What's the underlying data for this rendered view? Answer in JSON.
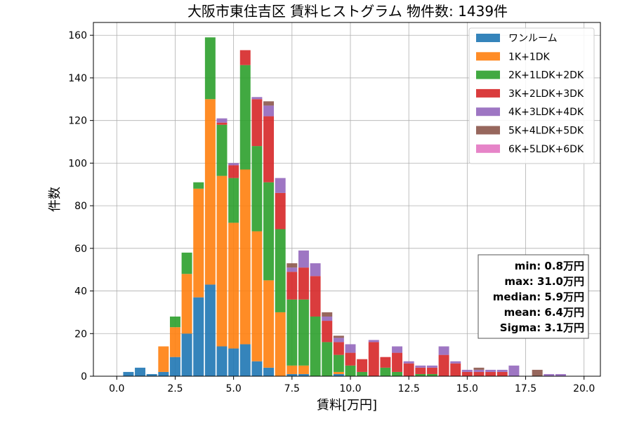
{
  "chart_data": {
    "type": "bar",
    "stacked": true,
    "title": "大阪市東住吉区 賃料ヒストグラム 物件数: 1439件",
    "xlabel": "賃料[万円]",
    "ylabel": "件数",
    "xlim": [
      -1.0,
      20.7
    ],
    "ylim": [
      0,
      166
    ],
    "xticks": [
      0.0,
      2.5,
      5.0,
      7.5,
      10.0,
      12.5,
      15.0,
      17.5,
      20.0
    ],
    "xtick_labels": [
      "0.0",
      "2.5",
      "5.0",
      "7.5",
      "10.0",
      "12.5",
      "15.0",
      "17.5",
      "20.0"
    ],
    "yticks": [
      0,
      20,
      40,
      60,
      80,
      100,
      120,
      140,
      160
    ],
    "ytick_labels": [
      "0",
      "20",
      "40",
      "60",
      "80",
      "100",
      "120",
      "140",
      "160"
    ],
    "grid": true,
    "legend_position": "top-right",
    "bin_width": 0.5,
    "x": [
      0.5,
      1.0,
      1.5,
      2.0,
      2.5,
      3.0,
      3.5,
      4.0,
      4.5,
      5.0,
      5.5,
      6.0,
      6.5,
      7.0,
      7.5,
      8.0,
      8.5,
      9.0,
      9.5,
      10.0,
      10.5,
      11.0,
      11.5,
      12.0,
      12.5,
      13.0,
      13.5,
      14.0,
      14.5,
      15.0,
      15.5,
      16.0,
      16.5,
      17.0,
      17.5,
      18.0,
      18.5,
      19.0,
      19.5
    ],
    "series": [
      {
        "name": "ワンルーム",
        "color": "#1f77b4",
        "values": [
          2,
          4,
          1,
          2,
          9,
          20,
          37,
          43,
          14,
          13,
          15,
          7,
          4,
          0,
          1,
          1,
          0,
          0,
          1,
          0,
          0,
          0,
          0,
          0,
          0,
          0,
          0,
          0,
          0,
          0,
          0,
          0,
          0,
          0,
          0,
          0,
          0,
          0,
          0
        ]
      },
      {
        "name": "1K+1DK",
        "color": "#ff7f0e",
        "values": [
          0,
          0,
          0,
          12,
          14,
          28,
          51,
          87,
          80,
          59,
          82,
          61,
          41,
          30,
          4,
          4,
          0,
          0,
          1,
          0,
          0,
          0,
          0,
          0,
          0,
          0,
          0,
          0,
          0,
          0,
          0,
          0,
          0,
          0,
          0,
          0,
          0,
          0,
          0
        ]
      },
      {
        "name": "2K+1LDK+2DK",
        "color": "#2ca02c",
        "values": [
          0,
          0,
          0,
          0,
          5,
          10,
          3,
          29,
          24,
          21,
          49,
          40,
          46,
          39,
          31,
          31,
          28,
          16,
          8,
          5,
          2,
          0,
          4,
          2,
          0,
          1,
          1,
          0,
          0,
          0,
          0,
          0,
          0,
          0,
          0,
          0,
          0,
          0,
          0
        ]
      },
      {
        "name": "3K+2LDK+3DK",
        "color": "#d62728",
        "values": [
          0,
          0,
          0,
          0,
          0,
          0,
          0,
          0,
          1,
          6,
          7,
          22,
          31,
          17,
          13,
          15,
          19,
          10,
          6,
          6,
          6,
          16,
          5,
          9,
          6,
          3,
          3,
          10,
          6,
          2,
          2,
          2,
          2,
          0,
          0,
          0,
          0,
          0,
          0
        ]
      },
      {
        "name": "4K+3LDK+4DK",
        "color": "#9467bd",
        "values": [
          0,
          0,
          0,
          0,
          0,
          0,
          0,
          0,
          2,
          1,
          0,
          1,
          5,
          7,
          2,
          8,
          6,
          2,
          2,
          4,
          0,
          1,
          0,
          3,
          1,
          1,
          1,
          4,
          1,
          1,
          1,
          1,
          1,
          5,
          0,
          0,
          1,
          1,
          0
        ]
      },
      {
        "name": "5K+4LDK+5DK",
        "color": "#8c564b",
        "values": [
          0,
          0,
          0,
          0,
          0,
          0,
          0,
          0,
          0,
          0,
          0,
          0,
          2,
          0,
          2,
          0,
          0,
          2,
          1,
          0,
          0,
          0,
          0,
          0,
          0,
          0,
          0,
          0,
          0,
          0,
          1,
          0,
          0,
          0,
          0,
          3,
          0,
          0,
          0
        ]
      },
      {
        "name": "6K+5LDK+6DK",
        "color": "#e377c2",
        "values": [
          0,
          0,
          0,
          0,
          0,
          0,
          0,
          0,
          0,
          0,
          0,
          0,
          0,
          0,
          0,
          0,
          0,
          0,
          0,
          0,
          0,
          0,
          0,
          0,
          0,
          0,
          0,
          0,
          0,
          0,
          0,
          0,
          0,
          0,
          0,
          0,
          0,
          0,
          0
        ]
      }
    ],
    "stats": [
      "min: 0.8万円",
      "max: 31.0万円",
      "median: 5.9万円",
      "mean: 6.4万円",
      "Sigma: 3.1万円"
    ]
  }
}
